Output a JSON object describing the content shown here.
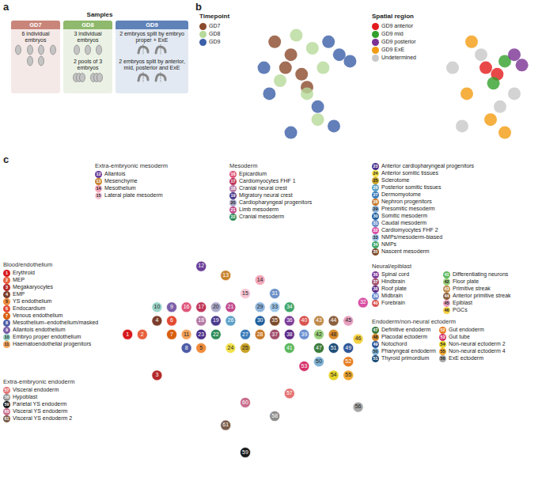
{
  "panel_labels": [
    "a",
    "b",
    "c"
  ],
  "panel_a": {
    "title": "Samples",
    "columns": [
      {
        "label": "GD7",
        "color": "#c9857a",
        "items": [
          {
            "text": "6 individual embryos",
            "icons": 6,
            "kind": "single"
          }
        ]
      },
      {
        "label": "GD8",
        "color": "#8fb96c",
        "items": [
          {
            "text": "3 individual embryos",
            "icons": 3,
            "kind": "single"
          },
          {
            "text": "2 pools of 3 embryos",
            "icons": 2,
            "kind": "pool"
          }
        ]
      },
      {
        "label": "GD9",
        "color": "#5f82b8",
        "items": [
          {
            "text": "2 embryos split by embryo proper + ExE",
            "icons": 2,
            "kind": "split"
          },
          {
            "text": "2 embryos split by anterior, mid, posterior and ExE",
            "icons": 2,
            "kind": "split"
          }
        ]
      }
    ]
  },
  "chart_data": [
    {
      "type": "scatter",
      "title": "Timepoint",
      "xlim": [
        0,
        100
      ],
      "ylim": [
        0,
        100
      ],
      "tick_labels": false,
      "series": [
        {
          "name": "GD7",
          "color": "#8b4a2b",
          "x": [
            20,
            35,
            45,
            50,
            30
          ],
          "y": [
            80,
            70,
            55,
            45,
            60
          ]
        },
        {
          "name": "GD8",
          "color": "#b7d99a",
          "x": [
            40,
            55,
            65,
            25,
            60,
            50
          ],
          "y": [
            85,
            75,
            60,
            50,
            20,
            40
          ]
        },
        {
          "name": "GD9",
          "color": "#3b5fa8",
          "x": [
            10,
            70,
            80,
            90,
            60,
            35,
            75,
            15
          ],
          "y": [
            60,
            80,
            70,
            65,
            30,
            10,
            15,
            40
          ]
        }
      ]
    },
    {
      "type": "scatter",
      "title": "Spatial region",
      "xlim": [
        0,
        100
      ],
      "ylim": [
        0,
        100
      ],
      "tick_labels": false,
      "series": [
        {
          "name": "GD9 anterior",
          "color": "#e31a1c",
          "x": [
            50,
            62
          ],
          "y": [
            60,
            55
          ]
        },
        {
          "name": "GD9 mid",
          "color": "#33a02c",
          "x": [
            70,
            58
          ],
          "y": [
            65,
            48
          ]
        },
        {
          "name": "GD9 posterior",
          "color": "#7b3294",
          "x": [
            80,
            88
          ],
          "y": [
            70,
            62
          ]
        },
        {
          "name": "GD9 ExE",
          "color": "#f39c12",
          "x": [
            35,
            55,
            70,
            30
          ],
          "y": [
            80,
            20,
            10,
            40
          ]
        },
        {
          "name": "Undetermined",
          "color": "#c8c8c8",
          "x": [
            15,
            45,
            80,
            25,
            65
          ],
          "y": [
            60,
            70,
            40,
            15,
            30
          ]
        }
      ]
    },
    {
      "type": "scatter",
      "marker": "numbered",
      "xlim": [
        0,
        100
      ],
      "ylim": [
        0,
        100
      ],
      "tick_labels": false,
      "groups": [
        {
          "name": "Blood/endothelium",
          "clusters": [
            {
              "id": 1,
              "name": "Erythroid",
              "color": "#d7191c",
              "x": 2,
              "y": 60
            },
            {
              "id": 2,
              "name": "MEP",
              "color": "#e8603c",
              "x": 8,
              "y": 60
            },
            {
              "id": 3,
              "name": "Megakaryocytes",
              "color": "#b5292a",
              "x": 14,
              "y": 42
            },
            {
              "id": 4,
              "name": "EMP",
              "color": "#7b3d2a",
              "x": 14,
              "y": 66
            },
            {
              "id": 5,
              "name": "YS endothelium",
              "color": "#f08c3c",
              "x": 32,
              "y": 54
            },
            {
              "id": 6,
              "name": "Endocardium",
              "color": "#e34a33",
              "x": 20,
              "y": 66
            },
            {
              "id": 7,
              "name": "Venous endothelium",
              "color": "#d95f0e",
              "x": 20,
              "y": 60
            },
            {
              "id": 8,
              "name": "Mesothelium–endothelium/masked",
              "color": "#4e5ba6",
              "x": 26,
              "y": 54
            },
            {
              "id": 9,
              "name": "Allantois endothelium",
              "color": "#7b5ea7",
              "x": 20,
              "y": 72
            },
            {
              "id": 10,
              "name": "Embryo proper endothelium",
              "color": "#9bd3c8",
              "x": 14,
              "y": 72
            },
            {
              "id": 11,
              "name": "Haematoendothelial progenitors",
              "color": "#f4a259",
              "x": 26,
              "y": 60
            }
          ]
        },
        {
          "name": "Extra-embryonic mesoderm",
          "clusters": [
            {
              "id": 12,
              "name": "Allantois",
              "color": "#6a3d9a",
              "x": 32,
              "y": 90
            },
            {
              "id": 13,
              "name": "Mesenchyme",
              "color": "#c8842e",
              "x": 42,
              "y": 86
            },
            {
              "id": 14,
              "name": "Mesothelium",
              "color": "#f4a7b9",
              "x": 56,
              "y": 84
            },
            {
              "id": 15,
              "name": "Lateral plate mesoderm",
              "color": "#f7c6d4",
              "x": 50,
              "y": 78
            }
          ]
        },
        {
          "name": "Mesoderm",
          "clusters": [
            {
              "id": 16,
              "name": "Epicardium",
              "color": "#e0567a",
              "x": 26,
              "y": 72
            },
            {
              "id": 17,
              "name": "Cardiomyocytes FHF 1",
              "color": "#c0365b",
              "x": 32,
              "y": 72
            },
            {
              "id": 18,
              "name": "Cranial neural crest",
              "color": "#b57aa6",
              "x": 32,
              "y": 66
            },
            {
              "id": 19,
              "name": "Migratory neural crest",
              "color": "#4b3a8c",
              "x": 38,
              "y": 66
            },
            {
              "id": 20,
              "name": "Cardiopharyngeal progenitors",
              "color": "#a9a9c9",
              "x": 38,
              "y": 72
            },
            {
              "id": 21,
              "name": "Limb mesoderm",
              "color": "#c24a8d",
              "x": 44,
              "y": 72
            },
            {
              "id": 22,
              "name": "Cranial mesoderm",
              "color": "#2e8b57",
              "x": 38,
              "y": 60
            }
          ]
        },
        {
          "clusters": [
            {
              "id": 23,
              "name": "Anterior cardiopharyngeal progenitors",
              "color": "#4a2f8a",
              "x": 32,
              "y": 60
            },
            {
              "id": 24,
              "name": "Anterior somitic tissues",
              "color": "#f2e14c",
              "x": 44,
              "y": 54
            },
            {
              "id": 25,
              "name": "Sclerotome",
              "color": "#c9a227",
              "x": 50,
              "y": 54
            },
            {
              "id": 26,
              "name": "Posterior somitic tissues",
              "color": "#5aa0c8",
              "x": 44,
              "y": 66
            },
            {
              "id": 27,
              "name": "Dermomyotome",
              "color": "#3a7ab8",
              "x": 50,
              "y": 60
            },
            {
              "id": 28,
              "name": "Nephron progenitors",
              "color": "#c87a2a",
              "x": 56,
              "y": 60
            },
            {
              "id": 29,
              "name": "Presomitic mesoderm",
              "color": "#8db4dc",
              "x": 56,
              "y": 72
            },
            {
              "id": 30,
              "name": "Somitic mesoderm",
              "color": "#1f5f9e",
              "x": 56,
              "y": 66
            },
            {
              "id": 31,
              "name": "Caudal mesoderm",
              "color": "#6b8fc7",
              "x": 62,
              "y": 78
            },
            {
              "id": 32,
              "name": "Cardiomyocytes FHF 2",
              "color": "#d94fa3",
              "x": 98,
              "y": 74
            },
            {
              "id": 33,
              "name": "NMPs/mesoderm-biased",
              "color": "#9ec6e8",
              "x": 62,
              "y": 72
            },
            {
              "id": 34,
              "name": "NMPs",
              "color": "#3fa66a",
              "x": 68,
              "y": 72
            },
            {
              "id": 35,
              "name": "Nascent mesoderm",
              "color": "#7b4a2a",
              "x": 62,
              "y": 66
            }
          ]
        },
        {
          "name": "Neural/epiblast",
          "clusters": [
            {
              "id": 36,
              "name": "Spinal cord",
              "color": "#7d3c98",
              "x": 68,
              "y": 66
            },
            {
              "id": 37,
              "name": "Hindbrain",
              "color": "#a14d6b",
              "x": 62,
              "y": 60
            },
            {
              "id": 38,
              "name": "Roof plate",
              "color": "#5b2a86",
              "x": 68,
              "y": 60
            },
            {
              "id": 39,
              "name": "Midbrain",
              "color": "#6a8fd0",
              "x": 74,
              "y": 60
            },
            {
              "id": 40,
              "name": "Forebrain",
              "color": "#d9534f",
              "x": 74,
              "y": 66
            },
            {
              "id": 41,
              "name": "Differentiating neurons",
              "color": "#5cb85c",
              "x": 68,
              "y": 54
            },
            {
              "id": 42,
              "name": "Floor plate",
              "color": "#9ad07a",
              "x": 80,
              "y": 60
            },
            {
              "id": 43,
              "name": "Primitive streak",
              "color": "#c08a4a",
              "x": 80,
              "y": 66
            },
            {
              "id": 44,
              "name": "Anterior primitive streak",
              "color": "#8b5e3c",
              "x": 86,
              "y": 66
            },
            {
              "id": 45,
              "name": "Epiblast",
              "color": "#e8a0c0",
              "x": 92,
              "y": 66
            },
            {
              "id": 46,
              "name": "PGCs",
              "color": "#f5d142",
              "x": 96,
              "y": 58
            }
          ]
        },
        {
          "name": "Endoderm/non-neural ectoderm",
          "clusters": [
            {
              "id": 47,
              "name": "Definitive endoderm",
              "color": "#3b7a3b",
              "x": 80,
              "y": 54
            },
            {
              "id": 48,
              "name": "Placodal ectoderm",
              "color": "#d98b2b",
              "x": 86,
              "y": 60
            },
            {
              "id": 49,
              "name": "Notochord",
              "color": "#2f5597",
              "x": 92,
              "y": 54
            },
            {
              "id": 50,
              "name": "Pharyngeal endoderm",
              "color": "#7fb3d5",
              "x": 80,
              "y": 48
            },
            {
              "id": 51,
              "name": "Thyroid primordium",
              "color": "#1f4e79",
              "x": 86,
              "y": 54
            },
            {
              "id": 52,
              "name": "Gut endoderm",
              "color": "#e67e22",
              "x": 92,
              "y": 48
            },
            {
              "id": 53,
              "name": "Gut tube",
              "color": "#d6336c",
              "x": 74,
              "y": 46
            },
            {
              "id": 54,
              "name": "Non-neural ectoderm 2",
              "color": "#e6d32b",
              "x": 86,
              "y": 42
            },
            {
              "id": 55,
              "name": "Non-neural ectoderm 4",
              "color": "#f0a830",
              "x": 92,
              "y": 42
            },
            {
              "id": 56,
              "name": "ExE ectoderm",
              "color": "#a6a6a6",
              "x": 96,
              "y": 28
            }
          ]
        },
        {
          "name": "Extra-embryonic endoderm",
          "clusters": [
            {
              "id": 57,
              "name": "Visceral endoderm",
              "color": "#e57373",
              "x": 68,
              "y": 34
            },
            {
              "id": 58,
              "name": "Hypoblast",
              "color": "#8c8c8c",
              "x": 62,
              "y": 24
            },
            {
              "id": 59,
              "name": "Parietal YS endoderm",
              "color": "#1a1a1a",
              "x": 50,
              "y": 8
            },
            {
              "id": 60,
              "name": "Visceral YS endoderm",
              "color": "#c86b8b",
              "x": 50,
              "y": 30
            },
            {
              "id": 61,
              "name": "Visceral YS endoderm 2",
              "color": "#7a5c4a",
              "x": 42,
              "y": 20
            }
          ]
        }
      ]
    }
  ]
}
